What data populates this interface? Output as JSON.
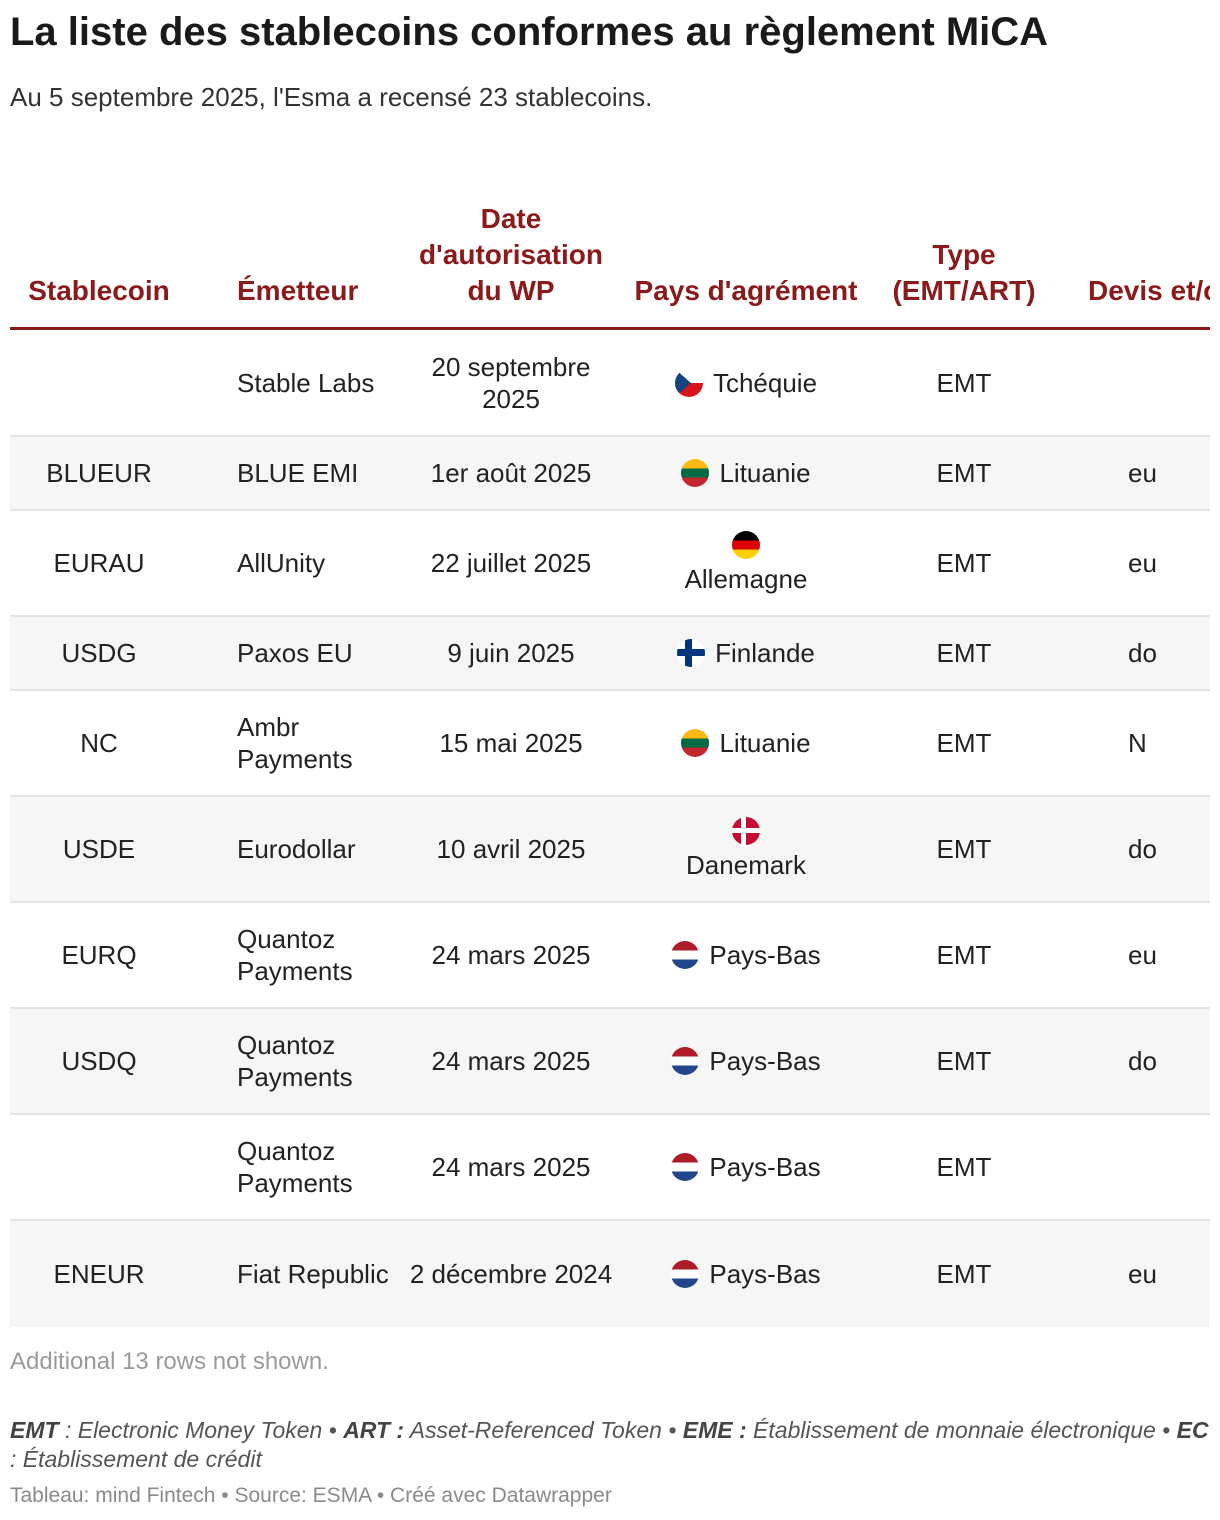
{
  "header": {
    "title": "La liste des stablecoins conformes au règlement MiCA",
    "subtitle": "Au 5 septembre 2025, l'Esma a recensé 23 stablecoins."
  },
  "table": {
    "columns": [
      "Stablecoin",
      "Émetteur",
      "Date d'autorisation du WP",
      "Pays d'agrément",
      "Type (EMT/ART)",
      "Devis et/ou a d'adoss"
    ],
    "rows": [
      {
        "stablecoin": "",
        "emetteur": "Stable Labs",
        "date": "20 septembre 2025",
        "flag": "cz-flag-icon",
        "pays": "Tchéquie",
        "type": "EMT",
        "devise": ""
      },
      {
        "stablecoin": "BLUEUR",
        "emetteur": "BLUE EMI",
        "date": "1er août 2025",
        "flag": "lt-flag-icon",
        "pays": "Lituanie",
        "type": "EMT",
        "devise": "eu"
      },
      {
        "stablecoin": "EURAU",
        "emetteur": "AllUnity",
        "date": "22 juillet 2025",
        "flag": "de-flag-icon",
        "pays": "Allemagne",
        "type": "EMT",
        "devise": "eu"
      },
      {
        "stablecoin": "USDG",
        "emetteur": "Paxos EU",
        "date": "9 juin 2025",
        "flag": "fi-flag-icon",
        "pays": "Finlande",
        "type": "EMT",
        "devise": "do"
      },
      {
        "stablecoin": "NC",
        "emetteur": "Ambr Payments",
        "date": "15 mai 2025",
        "flag": "lt-flag-icon",
        "pays": "Lituanie",
        "type": "EMT",
        "devise": "N"
      },
      {
        "stablecoin": "USDE",
        "emetteur": "Eurodollar",
        "date": "10 avril 2025",
        "flag": "dk-flag-icon",
        "pays": "Danemark",
        "type": "EMT",
        "devise": "do"
      },
      {
        "stablecoin": "EURQ",
        "emetteur": "Quantoz Payments",
        "date": "24 mars 2025",
        "flag": "nl-flag-icon",
        "pays": "Pays-Bas",
        "type": "EMT",
        "devise": "eu"
      },
      {
        "stablecoin": "USDQ",
        "emetteur": "Quantoz Payments",
        "date": "24 mars 2025",
        "flag": "nl-flag-icon",
        "pays": "Pays-Bas",
        "type": "EMT",
        "devise": "do"
      },
      {
        "stablecoin": "",
        "emetteur": "Quantoz Payments",
        "date": "24 mars 2025",
        "flag": "nl-flag-icon",
        "pays": "Pays-Bas",
        "type": "EMT",
        "devise": ""
      },
      {
        "stablecoin": "ENEUR",
        "emetteur": "Fiat Republic",
        "date": "2 décembre 2024",
        "flag": "nl-flag-icon",
        "pays": "Pays-Bas",
        "type": "EMT",
        "devise": "eu"
      }
    ],
    "more_rows": "Additional 13 rows not shown."
  },
  "legend": {
    "emt_term": "EMT",
    "emt_def": " : Electronic Money Token • ",
    "art_term": "ART :",
    "art_def": " Asset-Referenced Token • ",
    "eme_term": "EME :",
    "eme_def": " Établissement de monnaie électronique • ",
    "ec_term": "EC",
    "ec_def": " : Établissement de crédit"
  },
  "footer": {
    "credits": "Tableau: mind Fintech • Source: ESMA • Créé avec Datawrapper"
  }
}
